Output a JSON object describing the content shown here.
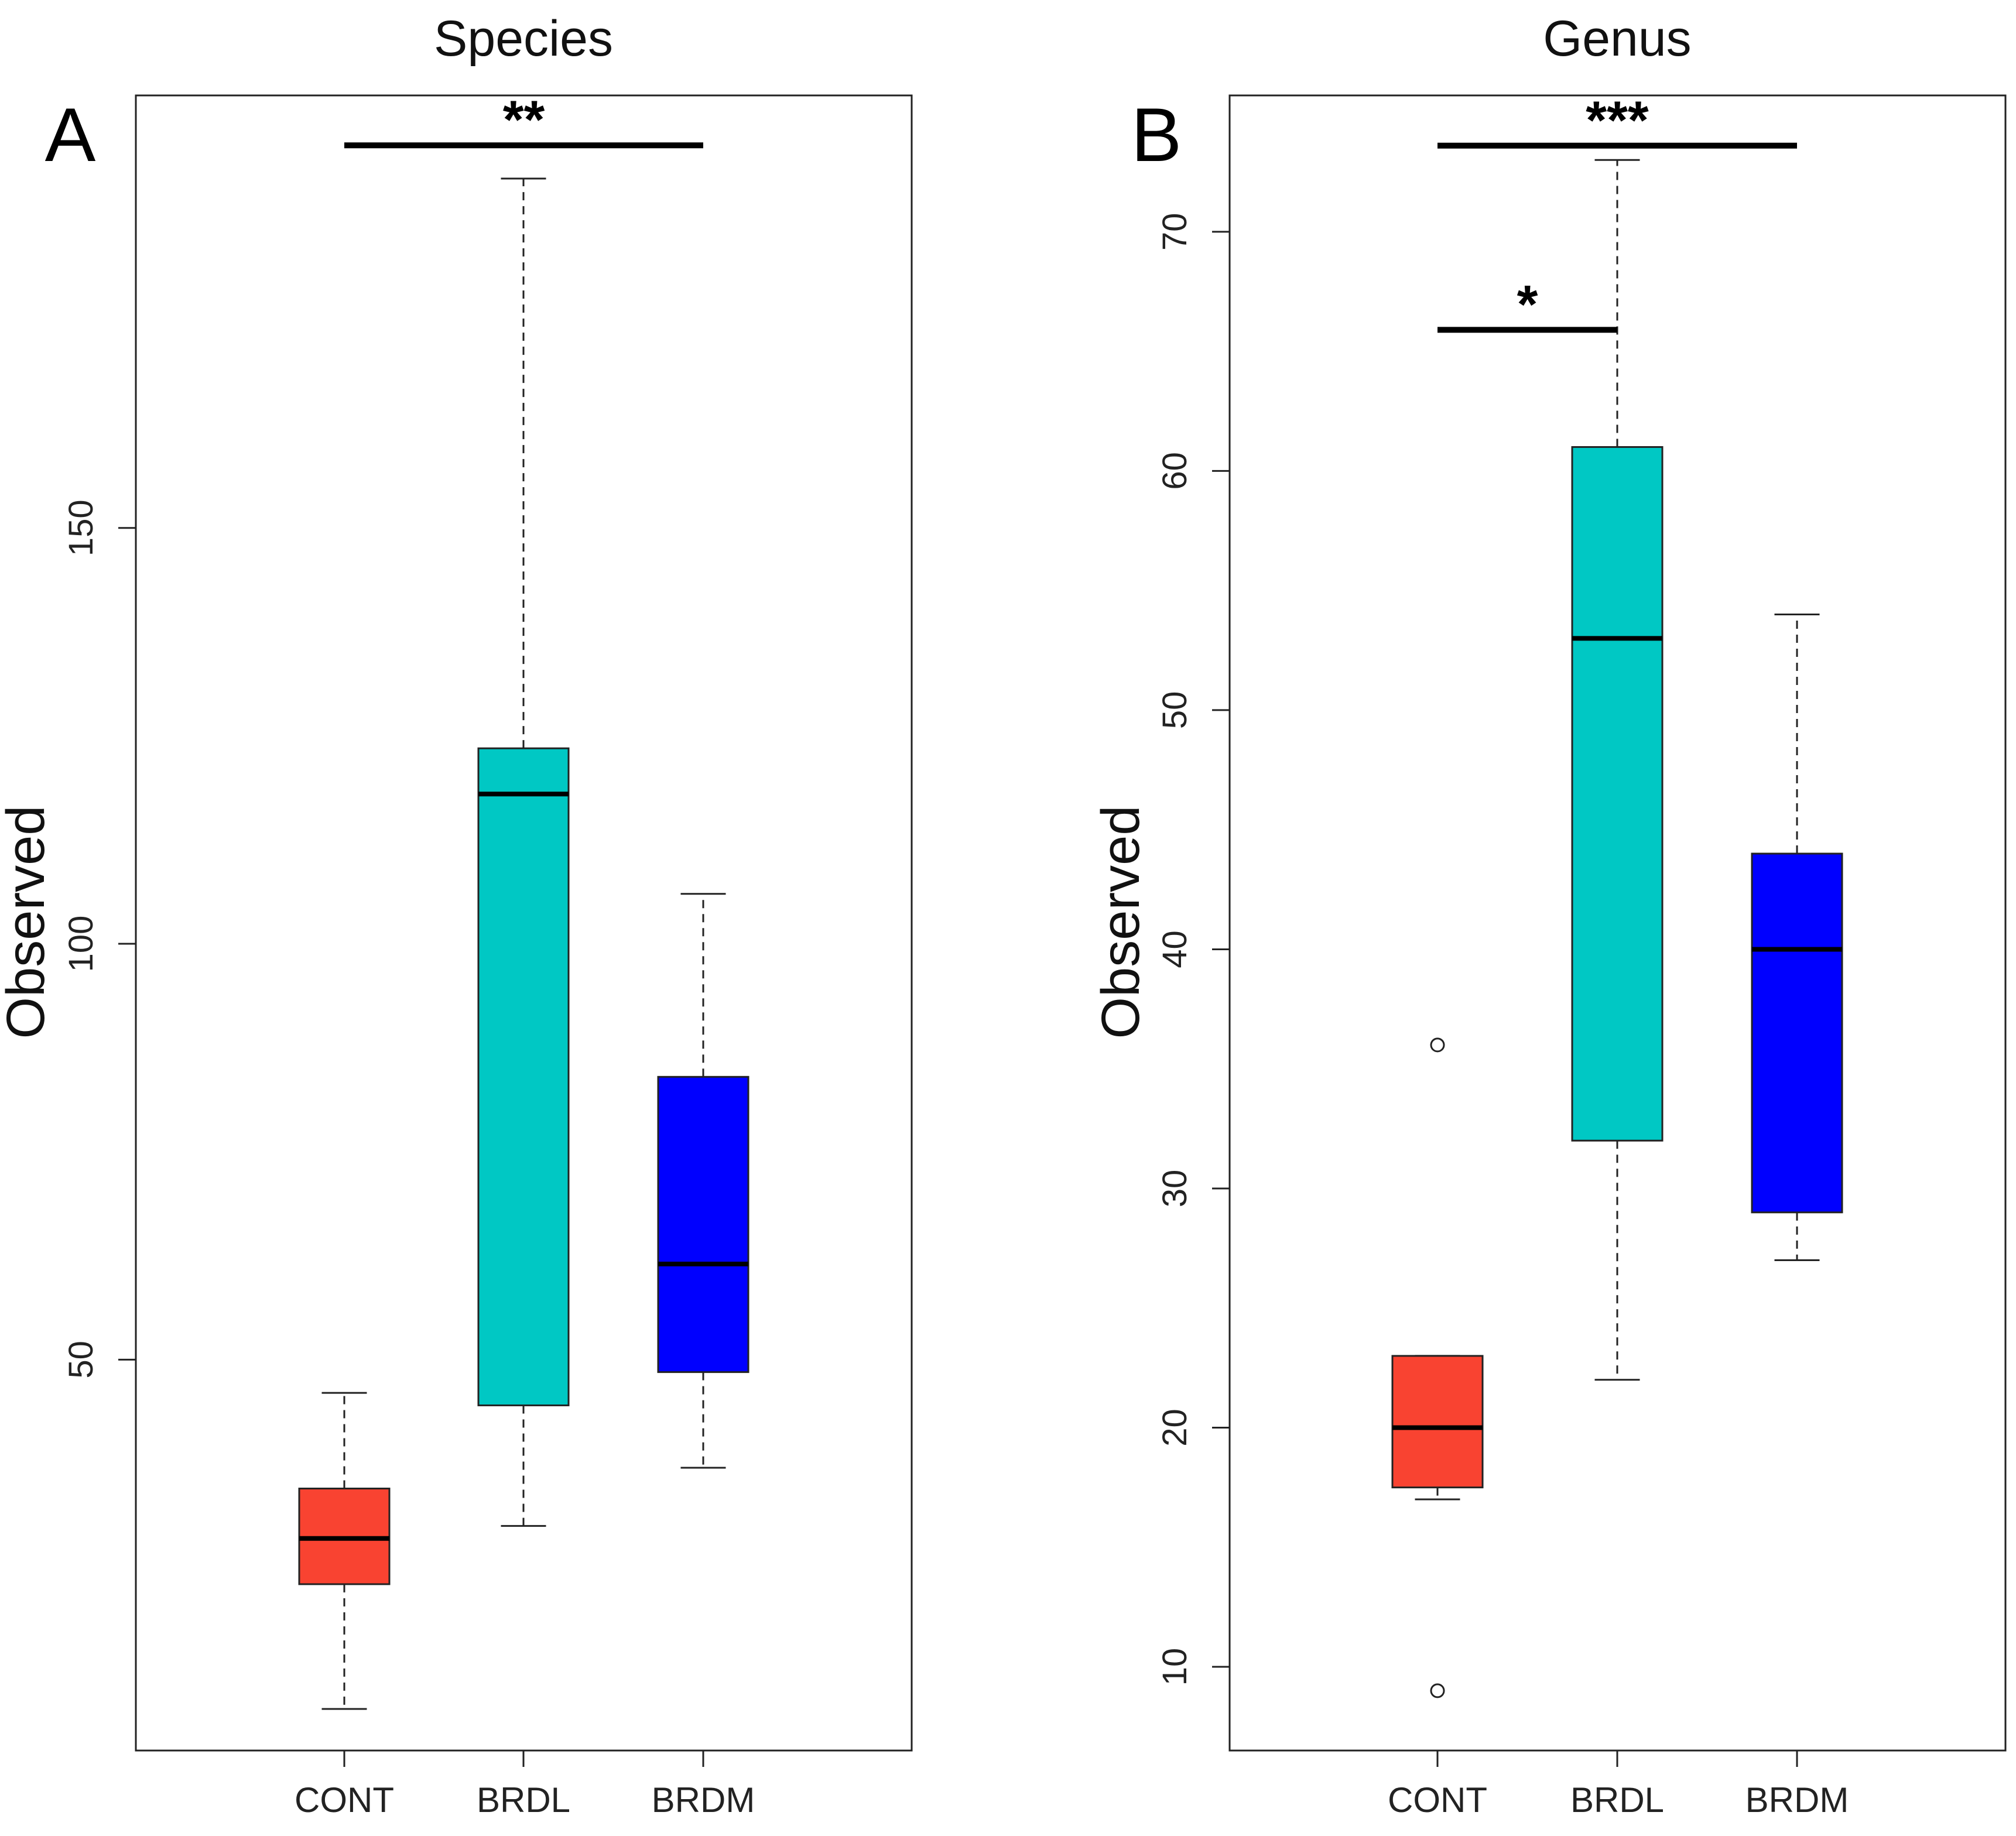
{
  "colors": {
    "CONT": "#f94331",
    "BRDL": "#00c8c4",
    "BRDM": "#0000ff",
    "axis": "#222222",
    "median": "#000000"
  },
  "chart_data": [
    {
      "type": "boxplot",
      "panel_label": "A",
      "title": "Species",
      "xlabel": "",
      "ylabel": "Observed",
      "categories": [
        "CONT",
        "BRDL",
        "BRDM"
      ],
      "ylim": [
        3,
        202
      ],
      "yticks": [
        {
          "value": 50,
          "label": "50"
        },
        {
          "value": 100,
          "label": "100"
        },
        {
          "value": 150,
          "label": "150"
        }
      ],
      "boxes": [
        {
          "group": "CONT",
          "whisker_low": 8,
          "q1": 23,
          "median": 28.5,
          "q3": 34.5,
          "whisker_high": 46,
          "outliers": []
        },
        {
          "group": "BRDL",
          "whisker_low": 30,
          "q1": 44.5,
          "median": 118,
          "q3": 123.5,
          "whisker_high": 192,
          "outliers": []
        },
        {
          "group": "BRDM",
          "whisker_low": 37,
          "q1": 48.5,
          "median": 61.5,
          "q3": 84,
          "whisker_high": 106,
          "outliers": []
        }
      ],
      "significance": [
        {
          "from": "CONT",
          "to": "BRDM",
          "value": 196,
          "label": "**"
        }
      ]
    },
    {
      "type": "boxplot",
      "panel_label": "B",
      "title": "Genus",
      "xlabel": "",
      "ylabel": "Observed",
      "categories": [
        "CONT",
        "BRDL",
        "BRDM"
      ],
      "ylim": [
        6.5,
        75.7
      ],
      "yticks": [
        {
          "value": 10,
          "label": "10"
        },
        {
          "value": 20,
          "label": "20"
        },
        {
          "value": 30,
          "label": "30"
        },
        {
          "value": 40,
          "label": "40"
        },
        {
          "value": 50,
          "label": "50"
        },
        {
          "value": 60,
          "label": "60"
        },
        {
          "value": 70,
          "label": "70"
        }
      ],
      "boxes": [
        {
          "group": "CONT",
          "whisker_low": 17,
          "q1": 17.5,
          "median": 20,
          "q3": 23,
          "whisker_high": 23,
          "outliers": [
            9,
            36
          ]
        },
        {
          "group": "BRDL",
          "whisker_low": 22,
          "q1": 32,
          "median": 53,
          "q3": 61,
          "whisker_high": 73,
          "outliers": []
        },
        {
          "group": "BRDM",
          "whisker_low": 27,
          "q1": 29,
          "median": 40,
          "q3": 44,
          "whisker_high": 54,
          "outliers": []
        }
      ],
      "significance": [
        {
          "from": "CONT",
          "to": "BRDM",
          "value": 73.6,
          "label": "***"
        },
        {
          "from": "CONT",
          "to": "BRDL",
          "value": 65.9,
          "label": "*"
        }
      ]
    }
  ]
}
